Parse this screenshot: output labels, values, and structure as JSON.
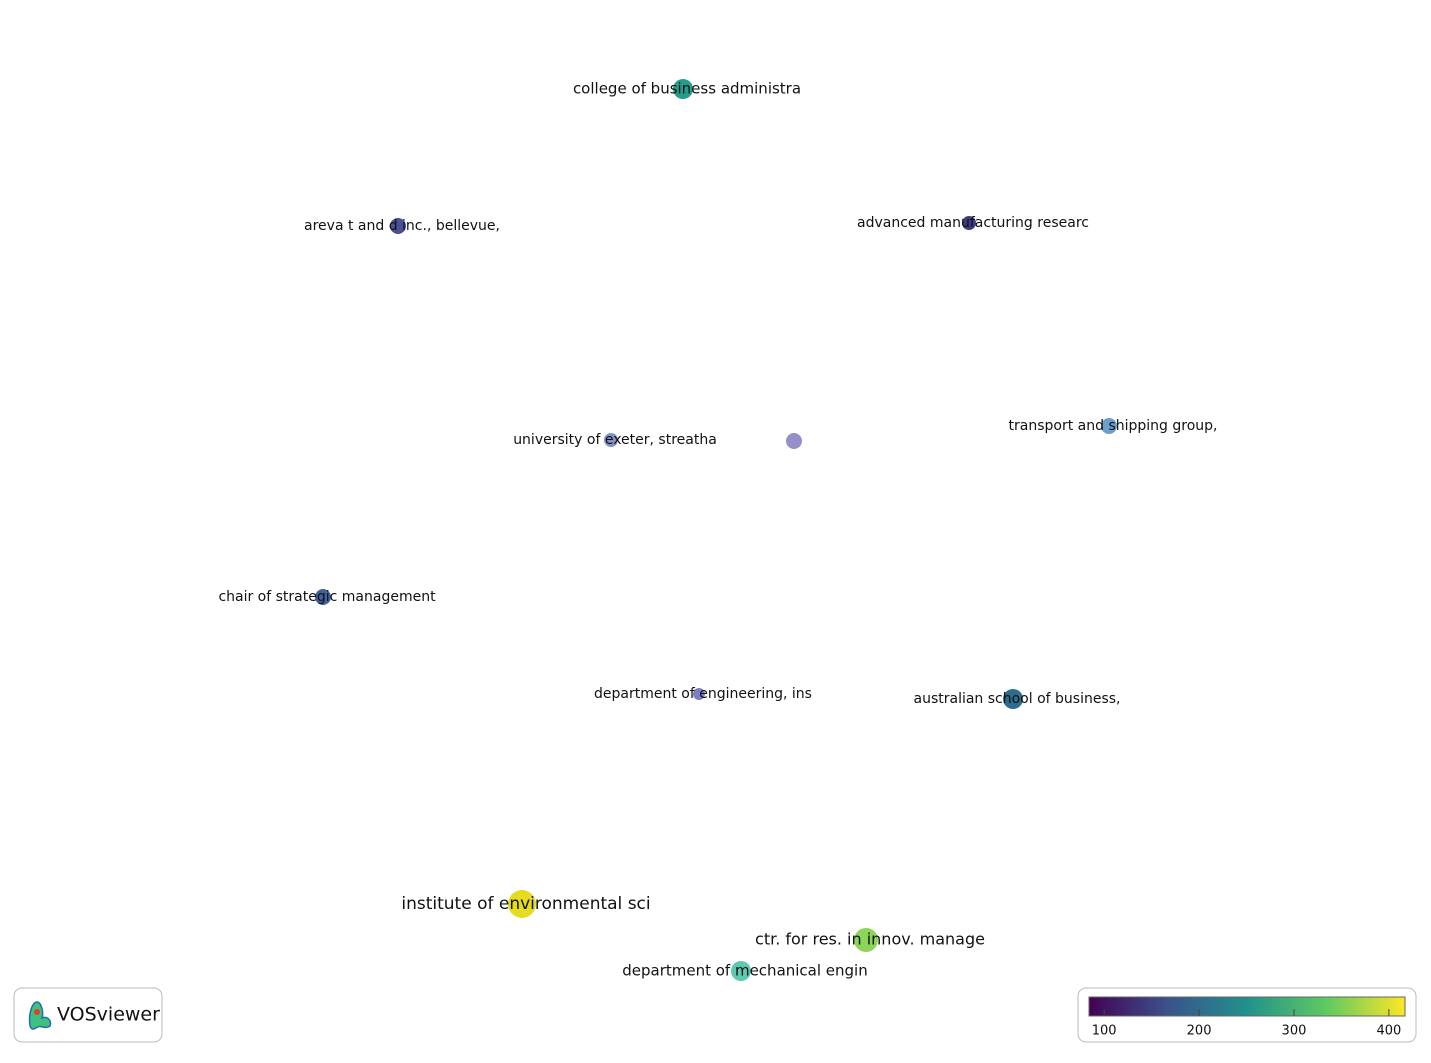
{
  "chart_data": {
    "type": "network",
    "nodes": [
      {
        "label": "college of business administra",
        "score": 240,
        "color": "#239e8b"
      },
      {
        "label": "areva t and d inc., bellevue,",
        "score": 110,
        "color": "#4a4f9a"
      },
      {
        "label": "advanced manufacturing researc",
        "score": 95,
        "color": "#3b3d82"
      },
      {
        "label": "university of exeter, streatha",
        "score": 150,
        "color": "#8394c4"
      },
      {
        "label": null,
        "score": 130,
        "color": "#9490cc"
      },
      {
        "label": "transport and shipping group,",
        "score": 170,
        "color": "#6a9fcc"
      },
      {
        "label": "chair of strategic management",
        "score": 150,
        "color": "#41629e"
      },
      {
        "label": "department of engineering, ins",
        "score": 120,
        "color": "#7b7fbf"
      },
      {
        "label": "australian school of business,",
        "score": 180,
        "color": "#2e6c8e"
      },
      {
        "label": "institute of environmental sci",
        "score": 410,
        "color": "#e5dc1f"
      },
      {
        "label": "ctr. for res. in innov. manage",
        "score": 330,
        "color": "#8dd45a"
      },
      {
        "label": "department of mechanical engin",
        "score": 260,
        "color": "#5fc8b0"
      }
    ],
    "colorbar": {
      "lim": [
        84,
        417
      ],
      "ticks": [
        100,
        200,
        300,
        400
      ],
      "colormap": [
        "#440154",
        "#3b528b",
        "#21918c",
        "#5ec962",
        "#fde725"
      ]
    },
    "logo": "VOSviewer"
  }
}
